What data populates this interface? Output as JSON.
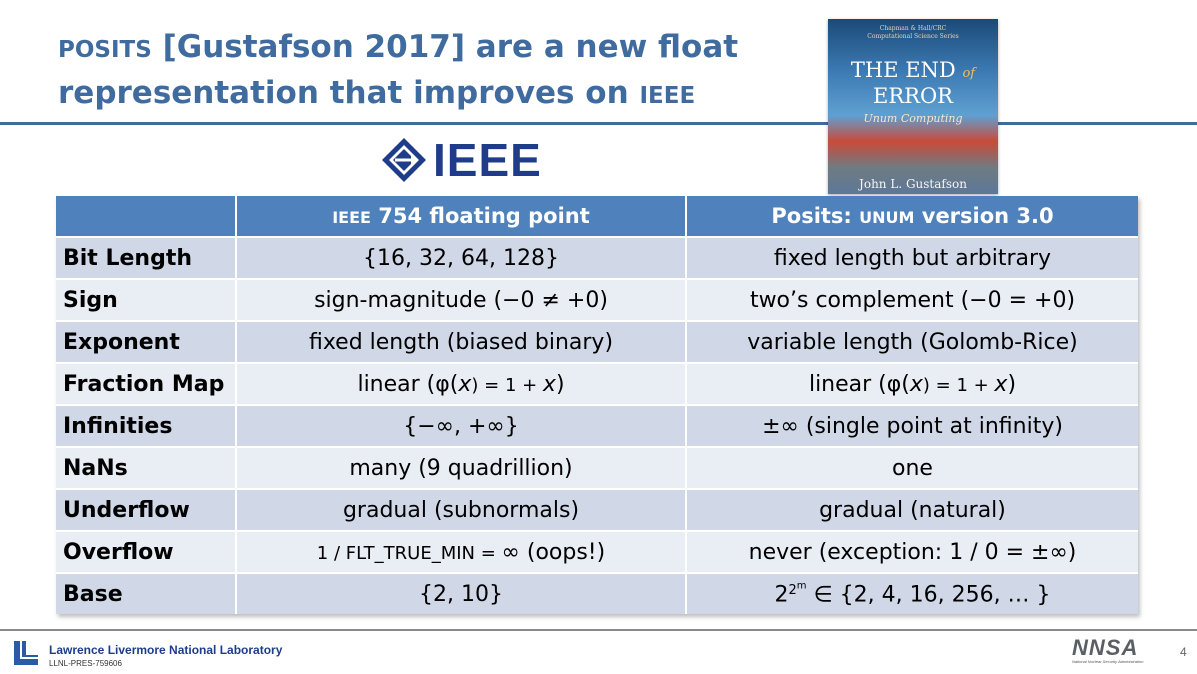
{
  "title": {
    "w1": "POSITS",
    "w2": " [Gustafson 2017] are a new float",
    "w3": "representation that improves on ",
    "w4": "IEEE"
  },
  "ieee_logo_text": "IEEE",
  "book": {
    "series": "Chapman & Hall/CRC",
    "series2": "Computational Science Series",
    "title_line1": "THE END",
    "title_of": "of",
    "title_line2": "ERROR",
    "subtitle": "Unum Computing",
    "author": "John L. Gustafson"
  },
  "table": {
    "header": {
      "col0": "",
      "col1_a": "IEEE",
      "col1_b": " 754 floating point",
      "col2_a": "Posits: ",
      "col2_b": "UNUM",
      "col2_c": " version 3.0"
    },
    "rows": [
      {
        "label": "Bit Length",
        "ieee": "{16, 32, 64, 128}",
        "posit": "fixed length but arbitrary"
      },
      {
        "label": "Sign",
        "ieee": "sign-magnitude (−0 ≠ +0)",
        "posit": "two’s complement (−0 = +0)"
      },
      {
        "label": "Exponent",
        "ieee": "fixed length (biased binary)",
        "posit": "variable length (Golomb-Rice)"
      },
      {
        "label": "Fraction Map",
        "ieee_a": "linear (φ(",
        "ieee_b": "x",
        "ieee_c": ") = 1 + ",
        "ieee_d": "x",
        "ieee_e": ")",
        "posit_a": "linear (φ(",
        "posit_b": "x",
        "posit_c": ") = 1 + ",
        "posit_d": "x",
        "posit_e": ")"
      },
      {
        "label": "Infinities",
        "ieee": "{−∞, +∞}",
        "posit": "±∞ (single point at infinity)"
      },
      {
        "label": "NaNs",
        "ieee": "many (9 quadrillion)",
        "posit": "one"
      },
      {
        "label": "Underflow",
        "ieee": "gradual (subnormals)",
        "posit": "gradual (natural)"
      },
      {
        "label": "Overflow",
        "ieee_a": "1 / FLT_TRUE_MIN = ",
        "ieee_b": "∞ (oops!)",
        "posit": "never (exception: 1 / 0 = ±∞)"
      },
      {
        "label": "Base",
        "ieee": "{2, 10}",
        "posit_base": "2",
        "posit_exp1": "2",
        "posit_exp2": "m",
        "posit_rest": " ∈ {2, 4, 16, 256, … }"
      }
    ]
  },
  "footer": {
    "lab": "Lawrence Livermore National Laboratory",
    "code": "LLNL-PRES-759606",
    "nnsa": "NNSA",
    "nnsa_tag": "National Nuclear Security Administration",
    "page": "4"
  },
  "colors": {
    "accent": "#3f6b9e",
    "header_fill": "#4f81bd",
    "row_odd": "#d0d8e8",
    "row_even": "#e9edf4"
  }
}
